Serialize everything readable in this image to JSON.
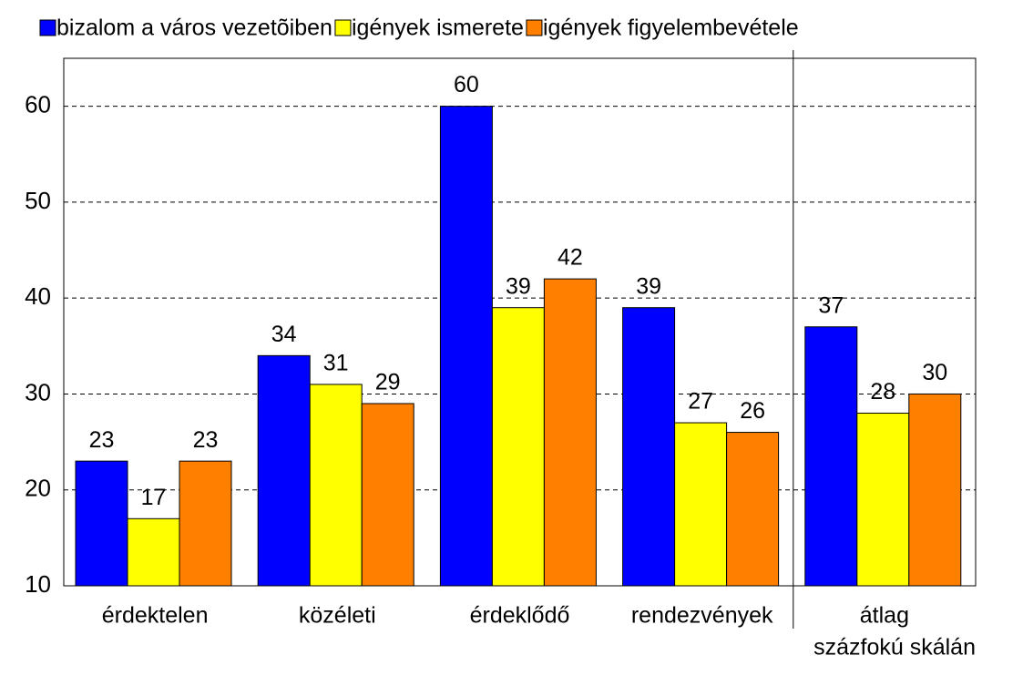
{
  "chart_data": {
    "type": "bar",
    "categories": [
      "érdektelen",
      "közéleti",
      "érdeklődő",
      "rendezvények",
      "átlag"
    ],
    "series": [
      {
        "name": "bizalom a város vezetõiben",
        "color": "#0000ff",
        "values": [
          23,
          34,
          60,
          39,
          37
        ]
      },
      {
        "name": "igények ismerete",
        "color": "#ffff00",
        "values": [
          17,
          31,
          39,
          27,
          28
        ]
      },
      {
        "name": "igények figyelembevétele",
        "color": "#ff8000",
        "values": [
          23,
          29,
          42,
          26,
          30
        ]
      }
    ],
    "annotation": "százfokú skálán",
    "ylim": [
      10,
      65
    ],
    "yticks": [
      10,
      20,
      30,
      40,
      50,
      60
    ],
    "grid": true,
    "legend": "top"
  }
}
